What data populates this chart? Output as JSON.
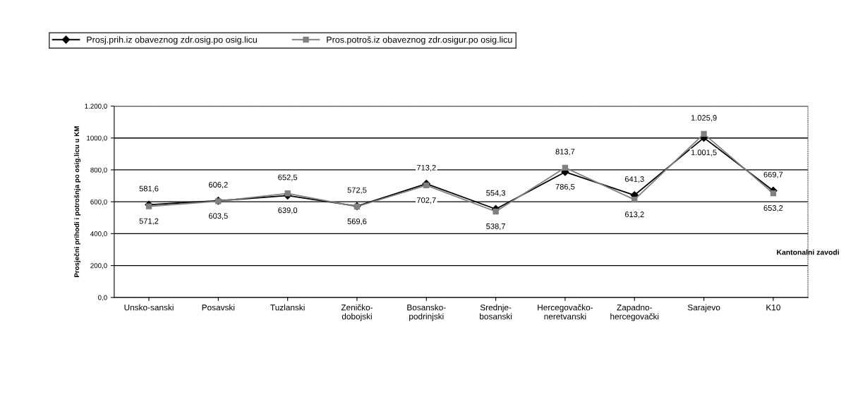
{
  "chart_data": {
    "type": "line",
    "categories": [
      "Unsko-sanski",
      "Posavski",
      "Tuzlanski",
      "Zeničko-\ndobojski",
      "Bosansko-\npodrinjski",
      "Srednje-\nbosanski",
      "Hercegovačko-\nneretvanski",
      "Zapadno-\nhercegovački",
      "Sarajevo",
      "K10"
    ],
    "series": [
      {
        "name": "Prosj.prih.iz obaveznog zdr.osig.po osig.licu",
        "color": "#000000",
        "marker": "diamond",
        "values": [
          581.6,
          606.2,
          639.0,
          572.5,
          713.2,
          554.3,
          786.5,
          641.3,
          1001.5,
          669.7
        ],
        "value_labels": [
          "581,6",
          "606,2",
          "639,0",
          "572,5",
          "713,2",
          "554,3",
          "786,5",
          "641,3",
          "1.001,5",
          "669,7"
        ]
      },
      {
        "name": "Pros.potroš.iz obaveznog zdr.osigur.po osig.licu",
        "color": "#808080",
        "marker": "square",
        "values": [
          571.2,
          603.5,
          652.5,
          569.6,
          702.7,
          538.7,
          813.7,
          613.2,
          1025.9,
          653.2
        ],
        "value_labels": [
          "571,2",
          "603,5",
          "652,5",
          "569,6",
          "702,7",
          "538,7",
          "813,7",
          "613,2",
          "1.025,9",
          "653,2"
        ]
      }
    ],
    "xlabel": "Kantonalni zavodi",
    "ylabel": "Prosječni prihodi i potrošnja po osig.licu u KM",
    "ylim": [
      0,
      1200
    ],
    "yticks": [
      {
        "value": 0,
        "label": "0,0"
      },
      {
        "value": 200,
        "label": "200,0"
      },
      {
        "value": 400,
        "label": "400,0"
      },
      {
        "value": 600,
        "label": "600,0"
      },
      {
        "value": 800,
        "label": "800,0"
      },
      {
        "value": 1000,
        "label": "1000,0"
      },
      {
        "value": 1200,
        "label": "1.200,0"
      }
    ],
    "grid": "y",
    "legend": "top",
    "line_style": "solid"
  }
}
